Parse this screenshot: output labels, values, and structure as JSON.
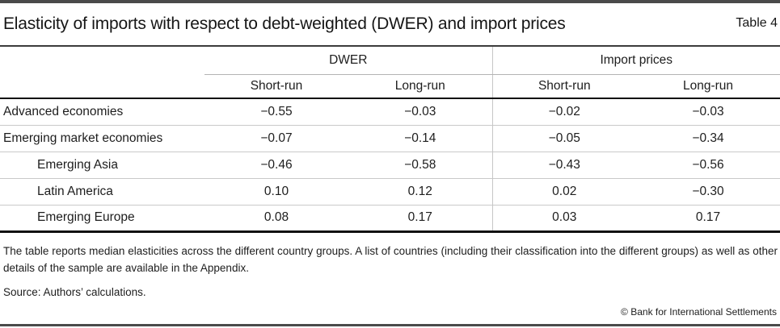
{
  "page": {
    "title": "Elasticity of imports with respect to debt-weighted (DWER) and import prices",
    "table_label": "Table 4"
  },
  "table": {
    "col_groups": [
      {
        "label": "DWER",
        "sub": [
          "Short-run",
          "Long-run"
        ]
      },
      {
        "label": "Import prices",
        "sub": [
          "Short-run",
          "Long-run"
        ]
      }
    ],
    "rows": [
      {
        "label": "Advanced economies",
        "values": [
          "−0.55",
          "−0.03",
          "−0.02",
          "−0.03"
        ]
      },
      {
        "label": "Emerging market economies",
        "values": [
          "−0.07",
          "−0.14",
          "−0.05",
          "−0.34"
        ]
      },
      {
        "label": "Emerging Asia",
        "values": [
          "−0.46",
          "−0.58",
          "−0.43",
          "−0.56"
        ]
      },
      {
        "label": "Latin America",
        "values": [
          "0.10",
          "0.12",
          "0.02",
          "−0.30"
        ]
      },
      {
        "label": "Emerging Europe",
        "values": [
          "0.08",
          "0.17",
          "0.03",
          "0.17"
        ]
      }
    ]
  },
  "notes": {
    "body": "The table reports median elasticities across the different country groups. A list of countries (including their classification into the different groups) as well as other details of the sample are available in the Appendix.",
    "source": "Source: Authors’ calculations.",
    "copyright": "© Bank for International Settlements"
  }
}
